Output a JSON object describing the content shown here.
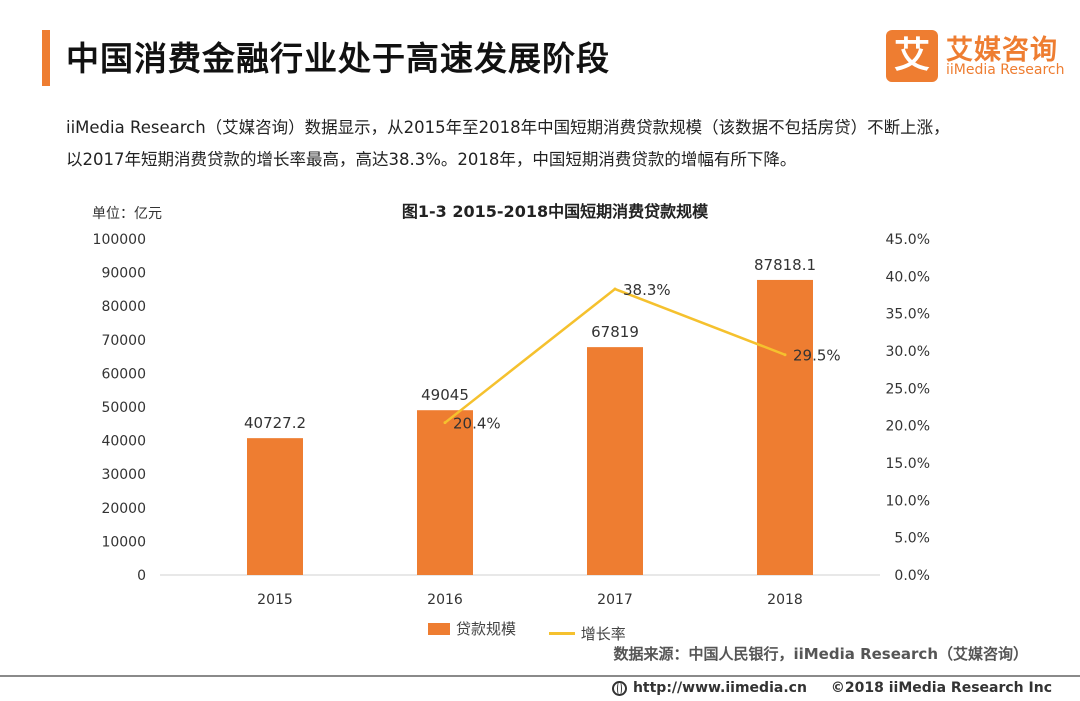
{
  "header": {
    "title": "中国消费金融行业处于高速发展阶段",
    "logo_badge": "艾",
    "logo_cn": "艾媒咨询",
    "logo_en": "iiMedia Research"
  },
  "description": {
    "line1": "iiMedia Research（艾媒咨询）数据显示，从2015年至2018年中国短期消费贷款规模（该数据不包括房贷）不断上涨，",
    "line2": "以2017年短期消费贷款的增长率最高，高达38.3%。2018年，中国短期消费贷款的增幅有所下降。"
  },
  "chart_data": {
    "type": "bar",
    "title": "图1-3 2015-2018中国短期消费贷款规模",
    "unit_label": "单位：亿元",
    "categories": [
      "2015",
      "2016",
      "2017",
      "2018"
    ],
    "series": [
      {
        "name": "贷款规模",
        "type": "bar",
        "axis": "left",
        "color": "#ee7d31",
        "values": [
          40727.2,
          49045,
          67819,
          87818.1
        ],
        "labels": [
          "40727.2",
          "49045",
          "67819",
          "87818.1"
        ]
      },
      {
        "name": "增长率",
        "type": "line",
        "axis": "right",
        "color": "#f5c12e",
        "values": [
          null,
          20.4,
          38.3,
          29.5
        ],
        "labels": [
          "",
          "20.4%",
          "38.3%",
          "29.5%"
        ]
      }
    ],
    "y_left": {
      "min": 0,
      "max": 100000,
      "ticks": [
        "0",
        "10000",
        "20000",
        "30000",
        "40000",
        "50000",
        "60000",
        "70000",
        "80000",
        "90000",
        "100000"
      ]
    },
    "y_right": {
      "min": 0,
      "max": 45,
      "ticks": [
        "0.0%",
        "5.0%",
        "10.0%",
        "15.0%",
        "20.0%",
        "25.0%",
        "30.0%",
        "35.0%",
        "40.0%",
        "45.0%"
      ]
    },
    "grid": false,
    "legend": "bottom"
  },
  "source": "数据来源：中国人民银行，iiMedia Research（艾媒咨询）",
  "footer": {
    "url": "http://www.iimedia.cn",
    "copyright": "©2018  iiMedia Research  Inc"
  }
}
